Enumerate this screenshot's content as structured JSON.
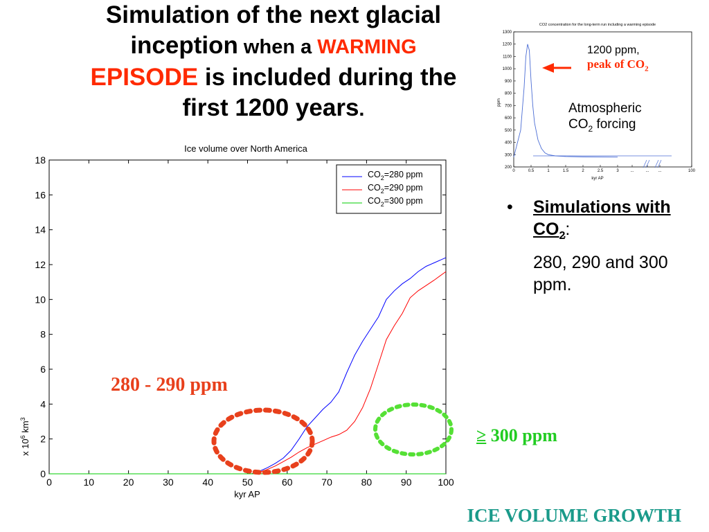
{
  "slide": {
    "title": {
      "line1": "Simulation of the next glacial",
      "line2_a": "inception",
      "line2_b": " when a ",
      "line2_c": "WARMING",
      "line3_a": "EPISODE",
      "line3_b": " is included during the",
      "line4_a": "first 1200 years",
      "line4_b": "."
    },
    "bullet": {
      "marker": "•",
      "heading_a": "Simulations with CO",
      "heading_sub": "2",
      "heading_colon": ":",
      "values_text": "280, 290 and 300 ppm."
    },
    "co2_peak_note": {
      "line1": "1200 ppm,",
      "line2": "peak of CO",
      "line2_sub": "2"
    },
    "co2_forcing_note": {
      "line1": "Atmospheric",
      "line2a": "CO",
      "line2_sub": "2",
      "line2b": " forcing"
    },
    "annotation_left": "280 - 290 ppm",
    "annotation_right_symbol": "≥",
    "annotation_right": " 300 ppm",
    "footer": "ICE VOLUME GROWTH",
    "colors": {
      "accent_red": "#ff2a00",
      "annotation_red": "#e8401c",
      "annotation_green": "#22cc22",
      "footer": "#1a9a8a"
    }
  },
  "chart_data": [
    {
      "type": "line",
      "title": "Ice volume over North America",
      "xlabel": "kyr AP",
      "ylabel": "x 10^6 km^3",
      "xlim": [
        0,
        100
      ],
      "ylim": [
        0,
        18
      ],
      "xticks": [
        0,
        10,
        20,
        30,
        40,
        50,
        60,
        70,
        80,
        90,
        100
      ],
      "yticks": [
        0,
        2,
        4,
        6,
        8,
        10,
        12,
        14,
        16,
        18
      ],
      "grid": false,
      "legend_position": "top-right",
      "series": [
        {
          "name": "CO2=280 ppm",
          "color": "#0000ff",
          "x": [
            0,
            51,
            53,
            55,
            57,
            59,
            61,
            63,
            65,
            67,
            69,
            71,
            73,
            75,
            77,
            79,
            81,
            83,
            85,
            87,
            89,
            91,
            93,
            95,
            97,
            100
          ],
          "y": [
            0,
            0,
            0.15,
            0.35,
            0.6,
            0.9,
            1.35,
            2.0,
            2.7,
            3.2,
            3.7,
            4.1,
            4.7,
            5.8,
            6.8,
            7.6,
            8.3,
            9.0,
            10.0,
            10.5,
            10.9,
            11.2,
            11.6,
            11.9,
            12.1,
            12.4
          ]
        },
        {
          "name": "CO2=290 ppm",
          "color": "#ff0000",
          "x": [
            0,
            51,
            53,
            55,
            57,
            59,
            61,
            63,
            65,
            67,
            69,
            71,
            73,
            75,
            77,
            79,
            81,
            83,
            85,
            87,
            89,
            91,
            93,
            95,
            97,
            100
          ],
          "y": [
            0,
            0,
            0.1,
            0.25,
            0.45,
            0.7,
            0.95,
            1.25,
            1.5,
            1.7,
            1.9,
            2.1,
            2.25,
            2.5,
            3.0,
            3.8,
            4.9,
            6.3,
            7.7,
            8.5,
            9.2,
            10.1,
            10.5,
            10.8,
            11.1,
            11.6
          ]
        },
        {
          "name": "CO2=300 ppm",
          "color": "#00cc00",
          "x": [
            0,
            100
          ],
          "y": [
            0,
            0
          ]
        }
      ]
    },
    {
      "type": "line",
      "title": "CO2 concentration for the long-term run including a warming episode",
      "xlabel": "kyr AP",
      "ylabel": "ppm",
      "ylim": [
        200,
        1300
      ],
      "yticks": [
        200,
        300,
        400,
        500,
        600,
        700,
        800,
        900,
        1000,
        1100,
        1200,
        1300
      ],
      "xtick_labels": [
        "0",
        "0.5",
        "1",
        "1.5",
        "2",
        "2.5",
        "3",
        "...",
        "...",
        "...",
        "100"
      ],
      "grid": false,
      "series": [
        {
          "color": "#4a6cd4",
          "x": [
            0,
            0.2,
            0.3,
            0.35,
            0.4,
            0.45,
            0.5,
            0.55,
            0.6,
            0.7,
            0.8,
            0.9,
            1.0,
            1.2,
            1.5,
            2.0,
            3.0
          ],
          "y": [
            280,
            500,
            850,
            1100,
            1200,
            1150,
            900,
            700,
            560,
            420,
            350,
            315,
            300,
            290,
            285,
            282,
            280
          ]
        }
      ]
    }
  ]
}
